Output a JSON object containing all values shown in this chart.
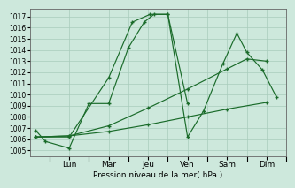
{
  "xlabel": "Pression niveau de la mer( hPa )",
  "bg_color": "#cde8dc",
  "grid_color": "#a8ccbc",
  "line_color": "#1a6b2a",
  "ylim": [
    1004.5,
    1017.7
  ],
  "yticks": [
    1005,
    1006,
    1007,
    1008,
    1009,
    1010,
    1011,
    1012,
    1013,
    1014,
    1015,
    1016,
    1017
  ],
  "day_tick_x": [
    2,
    4,
    6,
    8,
    10,
    12
  ],
  "day_labels": [
    "Lun",
    "Mar",
    "Jeu",
    "Ven",
    "Sam",
    "Dim"
  ],
  "xlim": [
    0,
    13
  ],
  "series": [
    {
      "comment": "Line1: starts 1007, dips 1005, rises to 1017 at Jeu(x=6), then drops to 1009 at Ven(x=8)",
      "x": [
        0.3,
        0.8,
        2.0,
        3.0,
        4.0,
        5.0,
        5.8,
        6.3,
        7.0,
        8.0
      ],
      "y": [
        1006.8,
        1005.8,
        1005.2,
        1009.2,
        1009.2,
        1014.2,
        1016.5,
        1017.2,
        1017.2,
        1009.2
      ]
    },
    {
      "comment": "Line2: flat bottom, very slight rise from 1006 to 1009 across full chart",
      "x": [
        0.3,
        2.0,
        4.0,
        6.0,
        8.0,
        10.0,
        12.0
      ],
      "y": [
        1006.2,
        1006.3,
        1006.7,
        1007.3,
        1008.0,
        1008.7,
        1009.3
      ]
    },
    {
      "comment": "Line3: starts ~1006, rises to ~1013 at Dim end",
      "x": [
        0.3,
        2.0,
        4.0,
        6.0,
        8.0,
        10.0,
        11.0,
        12.0
      ],
      "y": [
        1006.2,
        1006.3,
        1007.2,
        1008.8,
        1010.5,
        1012.3,
        1013.2,
        1013.0
      ]
    },
    {
      "comment": "Line4: from start rises sharply to 1017 at Jeu, drops to 1006 at Ven, then rises to 1015 Sam, drops 1014 Dim",
      "x": [
        0.3,
        2.0,
        4.0,
        5.2,
        6.1,
        7.0,
        8.0,
        8.8,
        9.8,
        10.5,
        11.0,
        11.8,
        12.5
      ],
      "y": [
        1006.2,
        1006.2,
        1011.5,
        1016.5,
        1017.2,
        1017.2,
        1006.2,
        1008.5,
        1012.8,
        1015.5,
        1013.8,
        1012.2,
        1009.8
      ]
    }
  ]
}
